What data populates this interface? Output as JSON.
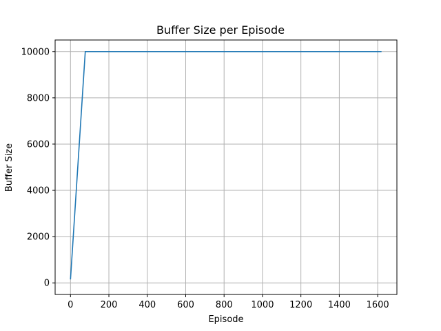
{
  "chart_data": {
    "type": "line",
    "title": "Buffer Size per Episode",
    "xlabel": "Episode",
    "ylabel": "Buffer Size",
    "xlim": [
      -80,
      1700
    ],
    "ylim": [
      -500,
      10500
    ],
    "xticks": [
      0,
      200,
      400,
      600,
      800,
      1000,
      1200,
      1400,
      1600
    ],
    "yticks": [
      0,
      2000,
      4000,
      6000,
      8000,
      10000
    ],
    "grid": true,
    "series": [
      {
        "x": [
          0,
          77,
          1620
        ],
        "y": [
          150,
          10000,
          10000
        ],
        "color": "#1f77b4"
      }
    ]
  }
}
